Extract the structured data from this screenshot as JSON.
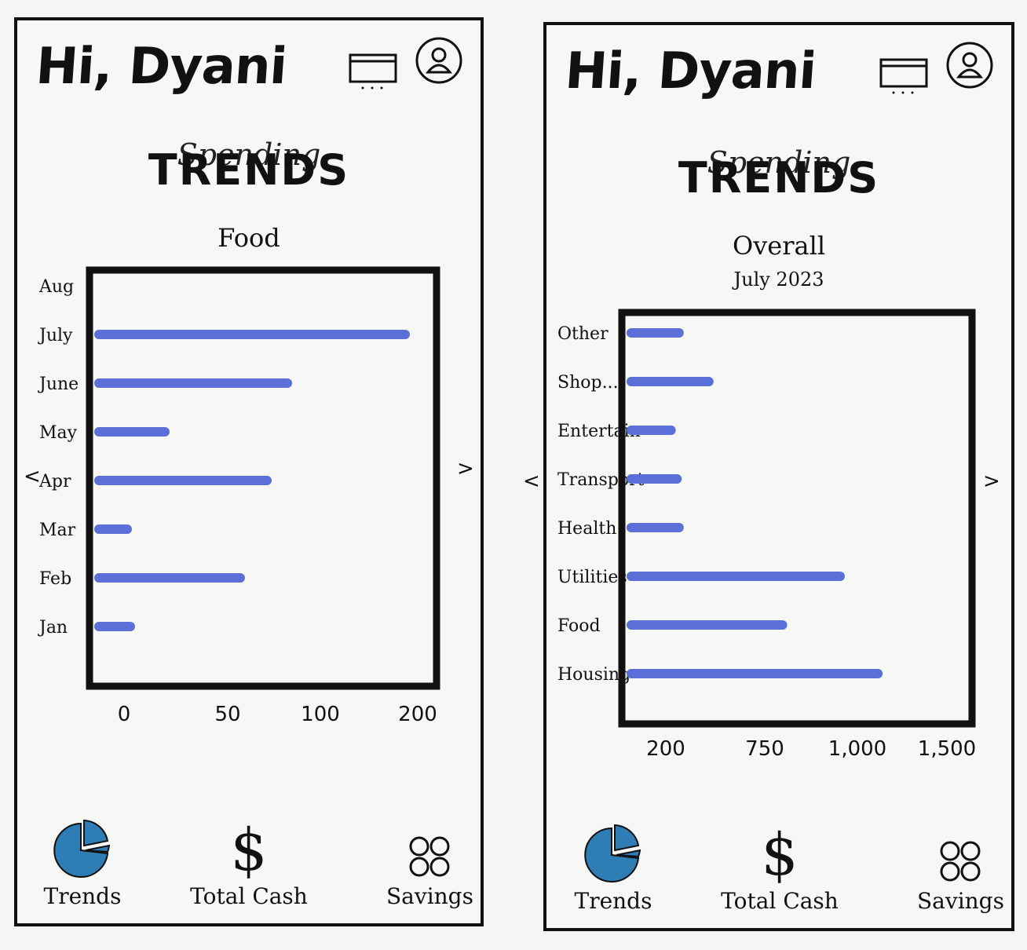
{
  "left_screen": {
    "greeting": "Hi, Dyani",
    "title_script": "Spending",
    "title_bold": "TRENDS",
    "subtitle": "Food",
    "prev_arrow": "<",
    "next_arrow": ">",
    "chart_data": {
      "type": "bar",
      "orientation": "horizontal",
      "categories": [
        "Aug",
        "July",
        "June",
        "May",
        "Apr",
        "Mar",
        "Feb",
        "Jan"
      ],
      "values": [
        0,
        195,
        120,
        42,
        107,
        18,
        90,
        20
      ],
      "x_ticks": [
        "0",
        "50",
        "100",
        "200"
      ],
      "bar_color": "#5b6fd8"
    },
    "tabs": [
      {
        "label": "Trends",
        "icon": "pie-chart-icon"
      },
      {
        "label": "Total Cash",
        "icon": "dollar-icon"
      },
      {
        "label": "Savings",
        "icon": "grid-circles-icon"
      }
    ]
  },
  "right_screen": {
    "greeting": "Hi, Dyani",
    "title_script": "Spending",
    "title_bold": "TRENDS",
    "subtitle": "Overall",
    "subtitle2": "July 2023",
    "prev_arrow": "<",
    "next_arrow": ">",
    "chart_data": {
      "type": "bar",
      "orientation": "horizontal",
      "categories": [
        "Other",
        "Shop...",
        "Entertain",
        "Transport",
        "Health",
        "Utilities",
        "Food",
        "Housing"
      ],
      "values": [
        240,
        390,
        200,
        230,
        240,
        1050,
        760,
        1240
      ],
      "x_ticks": [
        "200",
        "750",
        "1,000",
        "1,500"
      ],
      "bar_color": "#5b6fd8"
    },
    "tabs": [
      {
        "label": "Trends",
        "icon": "pie-chart-icon"
      },
      {
        "label": "Total Cash",
        "icon": "dollar-icon"
      },
      {
        "label": "Savings",
        "icon": "grid-circles-icon"
      }
    ]
  },
  "colors": {
    "bar": "#5b6fd8",
    "pie": "#2f7db5",
    "ink": "#111111"
  }
}
